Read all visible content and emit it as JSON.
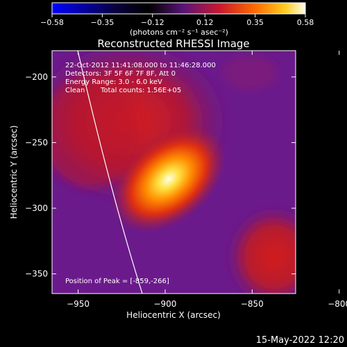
{
  "colorbar": {
    "ticks": [
      "−0.58",
      "−0.35",
      "−0.12",
      "0.12",
      "0.35",
      "0.58"
    ],
    "unit_label": "(photons cm⁻² s⁻¹ asec⁻²)",
    "range": [
      -0.58,
      0.58
    ]
  },
  "chart_data": {
    "type": "heatmap",
    "title": "Reconstructed RHESSI Image",
    "xlabel": "Heliocentric X (arcsec)",
    "ylabel": "Heliocentric Y (arcsec)",
    "xlim": [
      -965,
      -825
    ],
    "ylim": [
      -365,
      -180
    ],
    "xticks": [
      {
        "value": -950,
        "label": "−950"
      },
      {
        "value": -900,
        "label": "−900"
      },
      {
        "value": -850,
        "label": "−850"
      },
      {
        "value": -800,
        "label": "−800"
      }
    ],
    "yticks": [
      {
        "value": -200,
        "label": "−200"
      },
      {
        "value": -250,
        "label": "−250"
      },
      {
        "value": -300,
        "label": "−300"
      },
      {
        "value": -350,
        "label": "−350"
      }
    ],
    "annotations": {
      "time_range": "22-Oct-2012 11:41:08.000 to 11:46:28.000",
      "detectors": "Detectors: 3F 5F 6F 7F 8F, Att 0",
      "energy": "Energy Range: 3.0 - 6.0 keV",
      "clean": "Clean",
      "counts": "Total counts: 1.56E+05",
      "peak": "Position of Peak = [-859,-266]"
    },
    "peak": {
      "x": -859,
      "y": -266
    },
    "colormap": "hot (violet background to white peak)",
    "limb_curve": true
  },
  "footer": {
    "date": "15-May-2022 12:20"
  }
}
